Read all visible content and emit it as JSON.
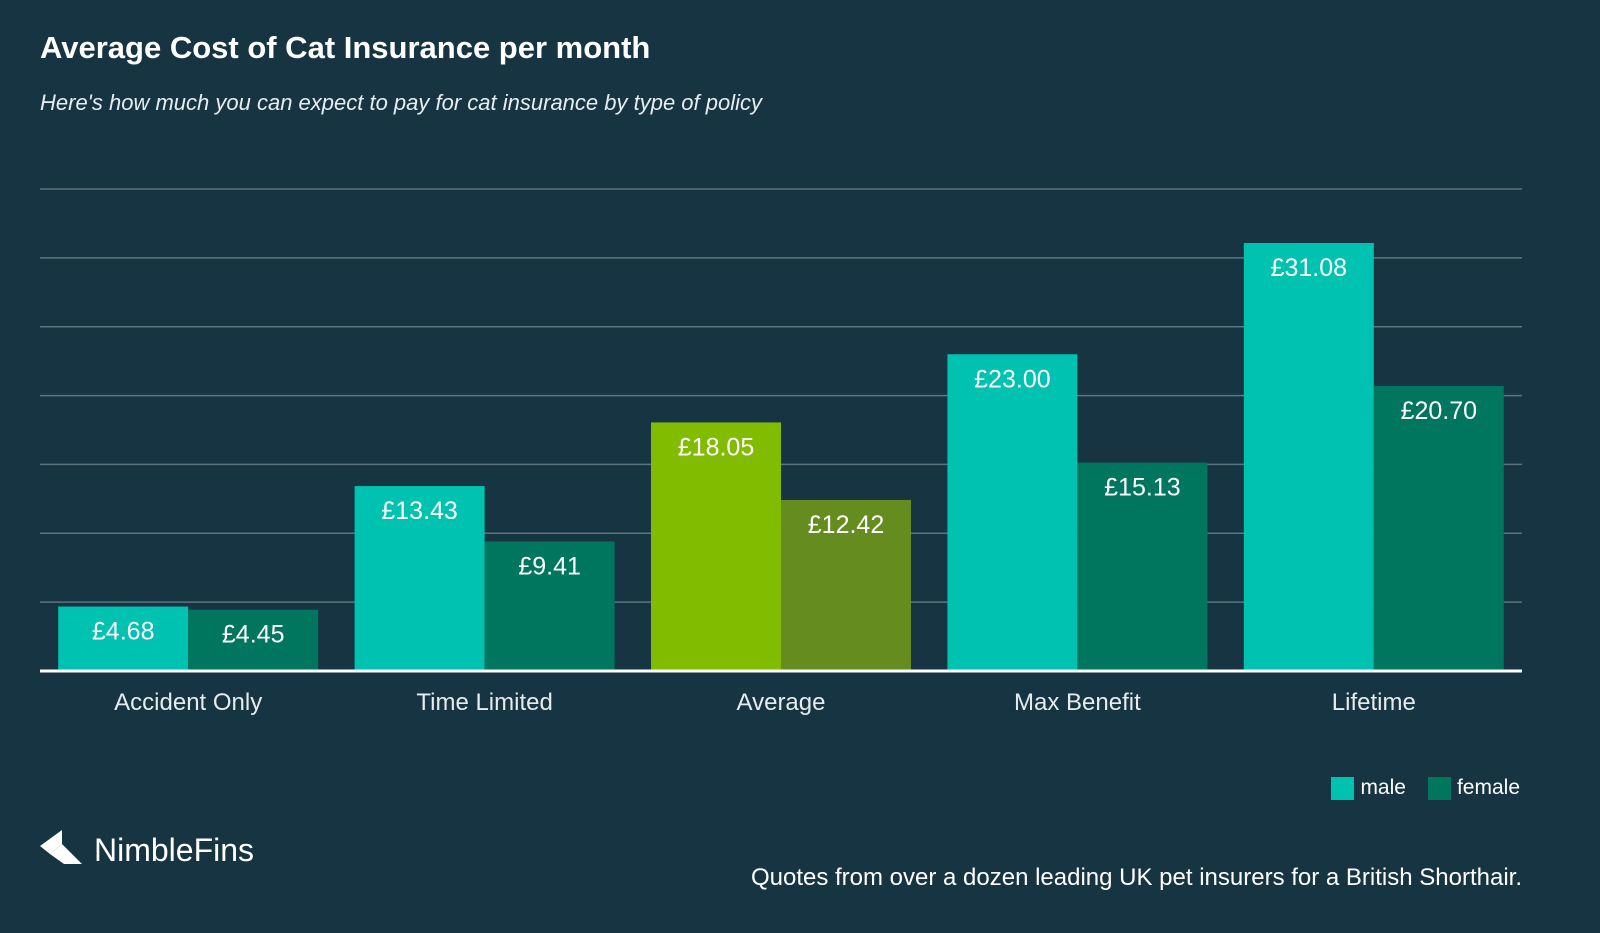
{
  "chart_data": {
    "type": "bar",
    "title": "Average Cost of Cat Insurance per month",
    "subtitle": "Here's how much you can expect to pay for cat insurance by type of policy",
    "categories": [
      "Accident Only",
      "Time Limited",
      "Average",
      "Max Benefit",
      "Lifetime"
    ],
    "series": [
      {
        "name": "male",
        "values": [
          4.68,
          13.43,
          18.05,
          23.0,
          31.08
        ],
        "labels": [
          "£4.68",
          "£13.43",
          "£18.05",
          "£23.00",
          "£31.08"
        ]
      },
      {
        "name": "female",
        "values": [
          4.45,
          9.41,
          12.42,
          15.13,
          20.7
        ],
        "labels": [
          "£4.45",
          "£9.41",
          "£12.42",
          "£15.13",
          "£20.70"
        ]
      }
    ],
    "highlight_category": "Average",
    "ylim": [
      0,
      35
    ],
    "gridlines": [
      5,
      10,
      15,
      20,
      25,
      30,
      35
    ],
    "legend_position": "bottom-right",
    "xlabel": "",
    "ylabel": ""
  },
  "colors": {
    "background": "#163442",
    "male": "#00c2b0",
    "female": "#00765f",
    "highlight_male": "#82bc00",
    "highlight_female": "#658c1e",
    "grid": "#5d7580",
    "axis": "#ffffff",
    "tick_text": "#e6ecee"
  },
  "legend": {
    "male_label": "male",
    "female_label": "female"
  },
  "brand": {
    "name": "NimbleFins",
    "icon": "nimblefins-arrow-icon"
  },
  "footnote": "Quotes from over a dozen leading UK pet insurers for a British Shorthair."
}
